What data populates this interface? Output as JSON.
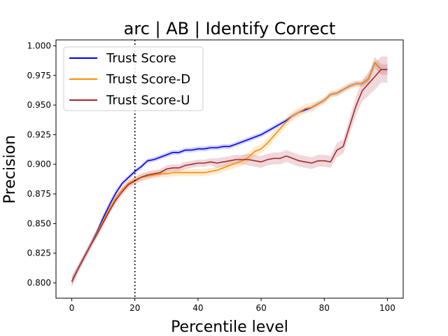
{
  "chart_data": {
    "type": "line",
    "title": "arc | AB | Identify Correct",
    "xlabel": "Percentile level",
    "ylabel": "Precision",
    "xlim": [
      -5,
      105
    ],
    "ylim": [
      0.787,
      1.005
    ],
    "xticks": [
      0,
      20,
      40,
      60,
      80,
      100
    ],
    "yticks": [
      0.8,
      0.825,
      0.85,
      0.875,
      0.9,
      0.925,
      0.95,
      0.975,
      1.0
    ],
    "xtick_labels": [
      "0",
      "20",
      "40",
      "60",
      "80",
      "100"
    ],
    "ytick_labels": [
      "0.800",
      "0.825",
      "0.850",
      "0.875",
      "0.900",
      "0.925",
      "0.950",
      "0.975",
      "1.000"
    ],
    "grid": false,
    "legend_position": "top-left",
    "reference_line_x": 20,
    "x": [
      0,
      2,
      4,
      6,
      8,
      10,
      12,
      14,
      16,
      18,
      20,
      22,
      24,
      26,
      28,
      30,
      32,
      34,
      36,
      38,
      40,
      42,
      44,
      46,
      48,
      50,
      52,
      54,
      56,
      58,
      60,
      62,
      64,
      66,
      68,
      70,
      72,
      74,
      76,
      78,
      80,
      82,
      84,
      86,
      88,
      90,
      92,
      94,
      96,
      98,
      100
    ],
    "series": [
      {
        "name": "Trust Score",
        "color": "#0000ee",
        "band_color": "#8080ff",
        "values": [
          0.801,
          0.812,
          0.822,
          0.832,
          0.843,
          0.855,
          0.866,
          0.876,
          0.884,
          0.889,
          0.894,
          0.898,
          0.903,
          0.904,
          0.906,
          0.908,
          0.91,
          0.91,
          0.912,
          0.912,
          0.913,
          0.913,
          0.914,
          0.914,
          0.915,
          0.915,
          0.917,
          0.919,
          0.921,
          0.923,
          0.925,
          0.928,
          0.931,
          0.934,
          0.937,
          0.941,
          0.944,
          0.946,
          0.948,
          0.951,
          0.954,
          0.959,
          0.96,
          0.963,
          0.966,
          0.968,
          0.968,
          0.972,
          0.986,
          0.98,
          0.98
        ],
        "band": [
          0.004,
          0.003,
          0.003,
          0.003,
          0.003,
          0.003,
          0.003,
          0.003,
          0.002,
          0.002,
          0.002,
          0.002,
          0.002,
          0.002,
          0.002,
          0.002,
          0.002,
          0.002,
          0.002,
          0.002,
          0.002,
          0.002,
          0.002,
          0.002,
          0.002,
          0.002,
          0.002,
          0.002,
          0.002,
          0.002,
          0.002,
          0.002,
          0.002,
          0.002,
          0.002,
          0.002,
          0.002,
          0.002,
          0.002,
          0.002,
          0.002,
          0.002,
          0.002,
          0.002,
          0.002,
          0.002,
          0.002,
          0.003,
          0.004,
          0.004,
          0.004
        ]
      },
      {
        "name": "Trust Score-D",
        "color": "#ff8c00",
        "band_color": "#ffc77f",
        "values": [
          0.801,
          0.812,
          0.822,
          0.832,
          0.842,
          0.853,
          0.863,
          0.872,
          0.879,
          0.884,
          0.887,
          0.889,
          0.89,
          0.891,
          0.892,
          0.892,
          0.893,
          0.893,
          0.893,
          0.893,
          0.893,
          0.893,
          0.894,
          0.895,
          0.897,
          0.899,
          0.901,
          0.903,
          0.906,
          0.911,
          0.913,
          0.918,
          0.924,
          0.93,
          0.936,
          0.941,
          0.944,
          0.947,
          0.948,
          0.951,
          0.954,
          0.959,
          0.96,
          0.963,
          0.966,
          0.968,
          0.968,
          0.972,
          0.986,
          0.98,
          0.98
        ],
        "band": [
          0.004,
          0.003,
          0.003,
          0.003,
          0.003,
          0.003,
          0.003,
          0.003,
          0.003,
          0.003,
          0.003,
          0.003,
          0.003,
          0.003,
          0.003,
          0.003,
          0.003,
          0.003,
          0.003,
          0.003,
          0.003,
          0.003,
          0.003,
          0.003,
          0.003,
          0.004,
          0.004,
          0.004,
          0.004,
          0.004,
          0.004,
          0.004,
          0.004,
          0.004,
          0.004,
          0.004,
          0.004,
          0.004,
          0.004,
          0.003,
          0.003,
          0.003,
          0.003,
          0.003,
          0.003,
          0.003,
          0.003,
          0.004,
          0.005,
          0.005,
          0.005
        ]
      },
      {
        "name": "Trust Score-U",
        "color": "#a52a2a",
        "band_color": "#cf8f9a",
        "values": [
          0.801,
          0.812,
          0.822,
          0.832,
          0.841,
          0.851,
          0.861,
          0.87,
          0.877,
          0.883,
          0.886,
          0.889,
          0.891,
          0.892,
          0.893,
          0.896,
          0.897,
          0.897,
          0.899,
          0.9,
          0.901,
          0.901,
          0.902,
          0.901,
          0.902,
          0.903,
          0.904,
          0.904,
          0.904,
          0.903,
          0.902,
          0.904,
          0.905,
          0.905,
          0.907,
          0.905,
          0.903,
          0.902,
          0.901,
          0.903,
          0.903,
          0.902,
          0.912,
          0.915,
          0.932,
          0.949,
          0.962,
          0.968,
          0.974,
          0.98,
          0.98
        ],
        "band": [
          0.004,
          0.003,
          0.003,
          0.003,
          0.003,
          0.003,
          0.003,
          0.003,
          0.003,
          0.003,
          0.003,
          0.003,
          0.003,
          0.003,
          0.003,
          0.003,
          0.003,
          0.003,
          0.003,
          0.003,
          0.003,
          0.003,
          0.003,
          0.004,
          0.004,
          0.004,
          0.004,
          0.004,
          0.005,
          0.005,
          0.005,
          0.005,
          0.005,
          0.005,
          0.005,
          0.005,
          0.005,
          0.005,
          0.005,
          0.005,
          0.005,
          0.005,
          0.006,
          0.006,
          0.007,
          0.008,
          0.009,
          0.01,
          0.011,
          0.011,
          0.011
        ]
      }
    ]
  }
}
